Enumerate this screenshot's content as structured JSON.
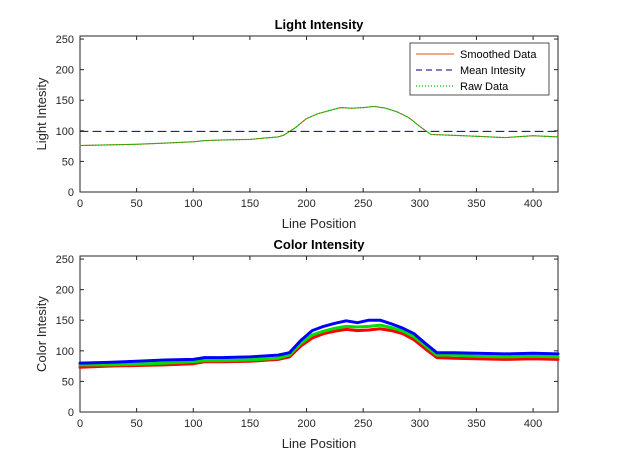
{
  "chart_data": [
    {
      "type": "line",
      "title": "Light Intensity",
      "xlabel": "Line Position",
      "ylabel": "Light Intesity",
      "xlim": [
        0,
        422
      ],
      "ylim": [
        0,
        255
      ],
      "xticks": [
        0,
        50,
        100,
        150,
        200,
        250,
        300,
        350,
        400
      ],
      "yticks": [
        0,
        50,
        100,
        150,
        200,
        250
      ],
      "legend_position": "top-right",
      "series": [
        {
          "name": "Smoothed Data",
          "color": "#d95319",
          "style": "solid",
          "x": [
            0,
            25,
            50,
            75,
            100,
            110,
            125,
            150,
            175,
            180,
            190,
            200,
            210,
            220,
            230,
            240,
            250,
            260,
            270,
            280,
            290,
            300,
            310,
            325,
            350,
            375,
            400,
            422
          ],
          "y": [
            76,
            77,
            78,
            80,
            82,
            84,
            85,
            86,
            90,
            93,
            105,
            120,
            128,
            133,
            138,
            137,
            138,
            140,
            137,
            131,
            122,
            107,
            94,
            93,
            91,
            89,
            92,
            90
          ]
        },
        {
          "name": "Mean Intesity",
          "color": "#000080",
          "style": "dashed",
          "x": [
            0,
            422
          ],
          "y": [
            99,
            99
          ]
        },
        {
          "name": "Raw Data",
          "color": "#00c000",
          "style": "dotted",
          "x": [
            0,
            25,
            50,
            75,
            100,
            110,
            125,
            150,
            175,
            180,
            190,
            200,
            210,
            220,
            230,
            240,
            250,
            260,
            270,
            280,
            290,
            300,
            310,
            325,
            350,
            375,
            400,
            422
          ],
          "y": [
            76,
            77,
            78,
            80,
            82,
            84,
            85,
            86,
            90,
            93,
            105,
            120,
            128,
            133,
            138,
            137,
            138,
            140,
            137,
            131,
            122,
            107,
            94,
            93,
            91,
            89,
            92,
            90
          ]
        }
      ]
    },
    {
      "type": "line",
      "title": "Color Intensity",
      "xlabel": "Line Position",
      "ylabel": "Color Intesity",
      "xlim": [
        0,
        422
      ],
      "ylim": [
        0,
        255
      ],
      "xticks": [
        0,
        50,
        100,
        150,
        200,
        250,
        300,
        350,
        400
      ],
      "yticks": [
        0,
        50,
        100,
        150,
        200,
        250
      ],
      "series": [
        {
          "color": "#ff0000",
          "x": [
            0,
            25,
            50,
            75,
            100,
            110,
            125,
            150,
            175,
            185,
            195,
            205,
            215,
            225,
            235,
            245,
            255,
            265,
            275,
            285,
            295,
            305,
            315,
            330,
            350,
            375,
            400,
            422
          ],
          "y": [
            73,
            75,
            76,
            77,
            79,
            82,
            82,
            83,
            86,
            90,
            108,
            121,
            128,
            132,
            135,
            133,
            134,
            136,
            133,
            128,
            118,
            103,
            89,
            88,
            87,
            86,
            87,
            86
          ]
        },
        {
          "color": "#00dd00",
          "x": [
            0,
            25,
            50,
            75,
            100,
            110,
            125,
            150,
            175,
            185,
            195,
            205,
            215,
            225,
            235,
            245,
            255,
            265,
            275,
            285,
            295,
            305,
            315,
            330,
            350,
            375,
            400,
            422
          ],
          "y": [
            77,
            77,
            78,
            80,
            82,
            84,
            84,
            85,
            88,
            93,
            112,
            126,
            132,
            137,
            140,
            139,
            140,
            142,
            138,
            132,
            123,
            108,
            93,
            93,
            91,
            90,
            91,
            90
          ]
        },
        {
          "color": "#0000ff",
          "x": [
            0,
            25,
            50,
            75,
            100,
            110,
            125,
            150,
            175,
            185,
            195,
            205,
            215,
            225,
            235,
            245,
            255,
            265,
            275,
            285,
            295,
            305,
            315,
            330,
            350,
            375,
            400,
            422
          ],
          "y": [
            80,
            81,
            83,
            85,
            86,
            89,
            89,
            90,
            93,
            97,
            117,
            133,
            140,
            145,
            149,
            146,
            150,
            150,
            144,
            137,
            128,
            112,
            97,
            97,
            96,
            95,
            96,
            95
          ]
        }
      ]
    }
  ]
}
